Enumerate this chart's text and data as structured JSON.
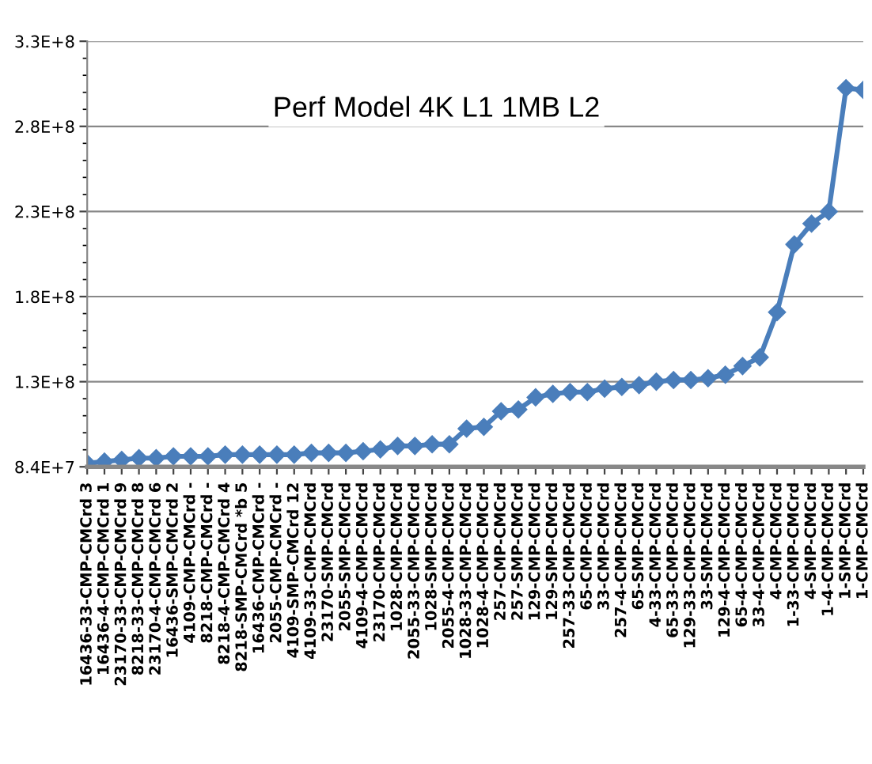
{
  "chart_data": {
    "type": "line",
    "title": "Perf Model 4K L1 1MB L2",
    "categories": [
      "16436-33-CMP-CMCrd 3",
      "16436-4-CMP-CMCrd 1",
      "23170-33-CMP-CMCrd 9",
      "8218-33-CMP-CMCrd 8",
      "23170-4-CMP-CMCrd 6",
      "16436-SMP-CMCrd 2",
      "4109-CMP-CMCrd -",
      "8218-CMP-CMCrd -",
      "8218-4-CMP-CMCrd 4",
      "8218-SMP-CMCrd *b 5",
      "16436-CMP-CMCrd -",
      "2055-CMP-CMCrd -",
      "4109-SMP-CMCrd 12",
      "4109-33-CMP-CMCrd",
      "23170-SMP-CMCrd",
      "2055-SMP-CMCrd",
      "4109-4-CMP-CMCrd",
      "23170-CMP-CMCrd",
      "1028-CMP-CMCrd",
      "2055-33-CMP-CMCrd",
      "1028-SMP-CMCrd",
      "2055-4-CMP-CMCrd",
      "1028-33-CMP-CMCrd",
      "1028-4-CMP-CMCrd",
      "257-CMP-CMCrd",
      "257-SMP-CMCrd",
      "129-CMP-CMCrd",
      "129-SMP-CMCrd",
      "257-33-CMP-CMCrd",
      "65-CMP-CMCrd",
      "33-CMP-CMCrd",
      "257-4-CMP-CMCrd",
      "65-SMP-CMCrd",
      "4-33-CMP-CMCrd",
      "65-33-CMP-CMCrd",
      "129-33-CMP-CMCrd",
      "33-SMP-CMCrd",
      "129-4-CMP-CMCrd",
      "65-4-CMP-CMCrd",
      "33-4-CMP-CMCrd",
      "4-CMP-CMCrd",
      "1-33-CMP-CMCrd",
      "4-SMP-CMCrd",
      "1-4-CMP-CMCrd",
      "1-SMP-CMCrd",
      "1-CMP-CMCrd"
    ],
    "series": [
      {
        "color": "#4a7ebb",
        "values": [
          86000000,
          87000000,
          88000000,
          89000000,
          89000000,
          90000000,
          90000000,
          90000000,
          91000000,
          91000000,
          91000000,
          91000000,
          91000000,
          92000000,
          92000000,
          92000000,
          93000000,
          94000000,
          96000000,
          96000000,
          97000000,
          97000000,
          106000000,
          107000000,
          116000000,
          117000000,
          124000000,
          126000000,
          127000000,
          127000000,
          129000000,
          130000000,
          131000000,
          133000000,
          134000000,
          134000000,
          135000000,
          137000000,
          142000000,
          147000000,
          173000000,
          212000000,
          224000000,
          231000000,
          302000000,
          301000000
        ]
      }
    ],
    "ylim": [
      84000000,
      329000000
    ],
    "yticks": [
      {
        "value": 84000000,
        "label": "8.4E+7"
      },
      {
        "value": 133000000,
        "label": "1.3E+8"
      },
      {
        "value": 182000000,
        "label": "1.8E+8"
      },
      {
        "value": 231000000,
        "label": "2.3E+8"
      },
      {
        "value": 280000000,
        "label": "2.8E+8"
      },
      {
        "value": 329000000,
        "label": "3.3E+8"
      }
    ],
    "grid": "y",
    "marker": "diamond",
    "line_style": "solid",
    "legend": false
  }
}
